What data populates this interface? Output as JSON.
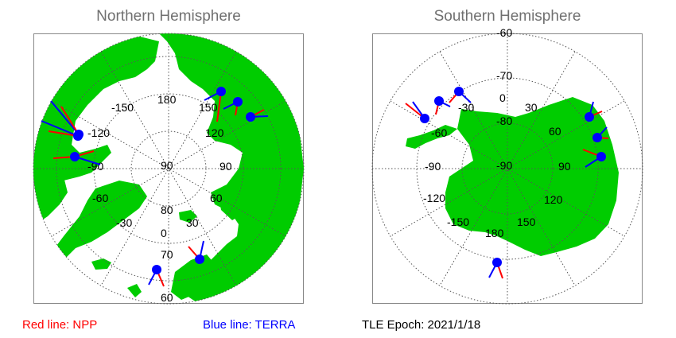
{
  "north": {
    "title": "Northern Hemisphere",
    "lon_labels": [
      "180",
      "150",
      "120",
      "90",
      "60",
      "30",
      "0",
      "-30",
      "-60",
      "-90",
      "-120",
      "-150"
    ],
    "lat_labels": [
      "90",
      "80",
      "70",
      "60"
    ]
  },
  "south": {
    "title": "Southern Hemisphere",
    "lon_labels": [
      "0",
      "30",
      "60",
      "90",
      "120",
      "150",
      "180",
      "-150",
      "-120",
      "-90",
      "-60",
      "-30"
    ],
    "lat_labels": [
      "-90",
      "-80",
      "-70",
      "-60"
    ]
  },
  "legend": {
    "npp": "Red line: NPP",
    "terra": "Blue line: TERRA",
    "tle_epoch": "TLE Epoch: 2021/1/18"
  },
  "colors": {
    "land": "#00cc00",
    "npp": "#ff0000",
    "terra": "#0000ff",
    "grid": "#555555",
    "title": "#707070"
  }
}
